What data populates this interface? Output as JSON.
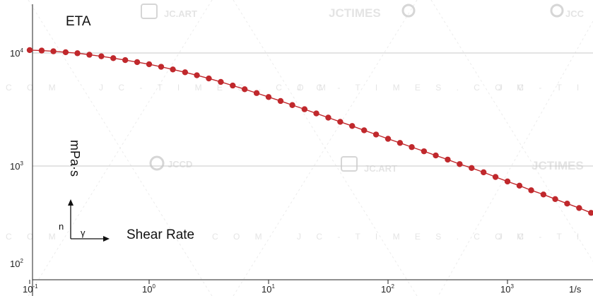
{
  "chart_data": {
    "type": "line",
    "title": "ETA",
    "xlabel": "Shear Rate",
    "ylabel": "mPa·s",
    "x_unit": "1/s",
    "x_scale": "log",
    "y_scale": "log",
    "xlim": [
      0.05,
      6000
    ],
    "ylim": [
      60,
      30000
    ],
    "grid": true,
    "x_ticks": [
      {
        "value": 0.1,
        "base": "10",
        "exp": "-1"
      },
      {
        "value": 1,
        "base": "10",
        "exp": "0"
      },
      {
        "value": 10,
        "base": "10",
        "exp": "1"
      },
      {
        "value": 100,
        "base": "10",
        "exp": "2"
      },
      {
        "value": 1000,
        "base": "10",
        "exp": "3"
      }
    ],
    "y_ticks": [
      {
        "value": 10000,
        "base": "10",
        "exp": "4"
      },
      {
        "value": 1000,
        "base": "10",
        "exp": "3"
      },
      {
        "value": 100,
        "base": "10",
        "exp": "2"
      }
    ],
    "series": [
      {
        "color": "#c0282c",
        "x": [
          0.1,
          0.126,
          0.158,
          0.2,
          0.251,
          0.316,
          0.398,
          0.501,
          0.631,
          0.794,
          1.0,
          1.26,
          1.58,
          2.0,
          2.51,
          3.16,
          3.98,
          5.01,
          6.31,
          7.94,
          10.0,
          12.6,
          15.8,
          20.0,
          25.1,
          31.6,
          39.8,
          50.1,
          63.1,
          79.4,
          100,
          126,
          158,
          200,
          251,
          316,
          398,
          501,
          631,
          794,
          1000,
          1260,
          1580,
          2000,
          2510,
          3160,
          3980,
          5010
        ],
        "y": [
          10600,
          10500,
          10350,
          10150,
          9950,
          9650,
          9350,
          9000,
          8650,
          8300,
          7950,
          7550,
          7150,
          6750,
          6350,
          5950,
          5550,
          5150,
          4780,
          4420,
          4080,
          3760,
          3460,
          3180,
          2920,
          2680,
          2460,
          2260,
          2070,
          1900,
          1740,
          1600,
          1470,
          1350,
          1240,
          1140,
          1040,
          960,
          880,
          800,
          730,
          670,
          610,
          560,
          510,
          465,
          425,
          385
        ]
      }
    ]
  },
  "watermarks": {
    "brand_a": "JC.ART",
    "brand_b": "JCTIMES",
    "brand_c": "JCCD",
    "url_row": "J C - T I M E S . C O M",
    "tail_a": "JCC",
    "tail_b": "C O M",
    "tail_c": "J C - T I M E S"
  },
  "axis_symbols": {
    "up": "n",
    "right": "γ"
  }
}
